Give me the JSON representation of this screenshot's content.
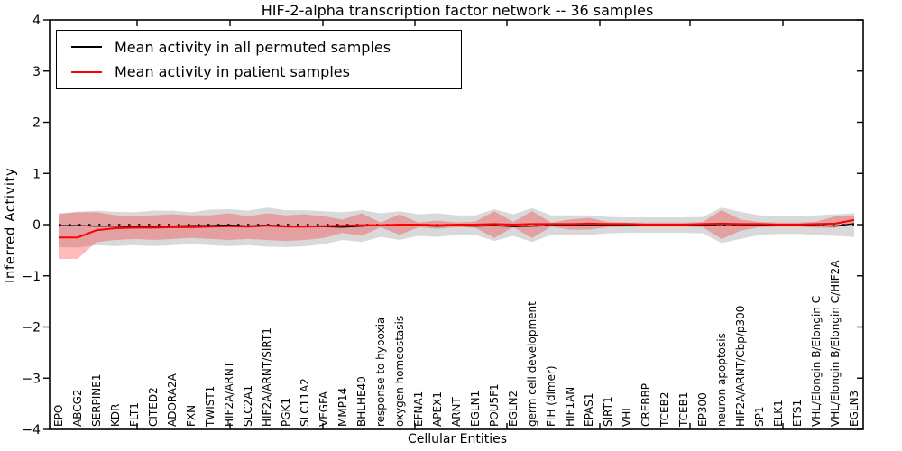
{
  "title": "HIF-2-alpha transcription factor network -- 36 samples",
  "axes": {
    "xlabel": "Cellular Entities",
    "ylabel": "Inferred Activity",
    "ytick_labels": [
      "4",
      "3",
      "2",
      "1",
      "0",
      "−1",
      "−2",
      "−3",
      "−4"
    ]
  },
  "legend": {
    "entries": [
      {
        "label": "Mean activity in all permuted samples",
        "color": "#000000"
      },
      {
        "label": "Mean activity in patient samples",
        "color": "#ff0000"
      }
    ]
  },
  "colors": {
    "permuted_line": "#000000",
    "patient_line": "#ff0000",
    "permuted_band": "rgba(120,120,120,0.28)",
    "patient_band": "rgba(255,30,30,0.30)",
    "frame": "#000000"
  },
  "chart_data": {
    "type": "line",
    "title": "HIF-2-alpha transcription factor network -- 36 samples",
    "xlabel": "Cellular Entities",
    "ylabel": "Inferred Activity",
    "ylim": [
      -4,
      4
    ],
    "yticks": [
      4,
      3,
      2,
      1,
      0,
      -1,
      -2,
      -3,
      -4
    ],
    "grid": false,
    "legend_position": "upper left",
    "categories": [
      "EPO",
      "ABCG2",
      "SERPINE1",
      "KDR",
      "FLT1",
      "CITED2",
      "ADORA2A",
      "FXN",
      "TWIST1",
      "HIF2A/ARNT",
      "SLC2A1",
      "HIF2A/ARNT/SIRT1",
      "PGK1",
      "SLC11A2",
      "VEGFA",
      "MMP14",
      "BHLHE40",
      "response to hypoxia",
      "oxygen homeostasis",
      "EFNA1",
      "APEX1",
      "ARNT",
      "EGLN1",
      "POU5F1",
      "EGLN2",
      "germ cell development",
      "FIH (dimer)",
      "HIF1AN",
      "EPAS1",
      "SIRT1",
      "VHL",
      "CREBBP",
      "TCEB2",
      "TCEB1",
      "EP300",
      "neuron apoptosis",
      "HIF2A/ARNT/Cbp/p300",
      "SP1",
      "ELK1",
      "ETS1",
      "VHL/Elongin B/Elongin C",
      "VHL/Elongin B/Elongin C/HIF2A",
      "EGLN3"
    ],
    "series": [
      {
        "name": "Mean activity in all permuted samples",
        "color": "#000000",
        "values": [
          -0.02,
          -0.02,
          -0.03,
          -0.03,
          -0.04,
          -0.04,
          -0.03,
          -0.02,
          -0.02,
          -0.01,
          -0.03,
          -0.01,
          -0.03,
          -0.03,
          -0.04,
          -0.05,
          -0.03,
          -0.01,
          -0.01,
          -0.02,
          -0.03,
          -0.02,
          -0.03,
          -0.02,
          -0.04,
          -0.03,
          -0.02,
          -0.01,
          -0.01,
          -0.01,
          -0.01,
          -0.01,
          -0.01,
          -0.01,
          -0.01,
          -0.02,
          -0.02,
          -0.01,
          -0.02,
          -0.02,
          -0.02,
          -0.03,
          0.02
        ]
      },
      {
        "name": "Mean activity in patient samples",
        "color": "#ff0000",
        "values": [
          -0.25,
          -0.25,
          -0.11,
          -0.07,
          -0.06,
          -0.06,
          -0.05,
          -0.05,
          -0.04,
          -0.03,
          -0.04,
          -0.02,
          -0.04,
          -0.04,
          -0.03,
          -0.02,
          -0.01,
          -0.01,
          0.0,
          0.0,
          -0.01,
          0.0,
          0.0,
          0.01,
          0.0,
          0.01,
          0.01,
          0.01,
          0.02,
          0.01,
          0.01,
          0.0,
          0.0,
          0.0,
          0.01,
          0.02,
          0.01,
          0.01,
          0.0,
          0.0,
          0.01,
          0.02,
          0.09
        ]
      }
    ],
    "bands": [
      {
        "name": "permuted-range",
        "upper": [
          0.22,
          0.25,
          0.27,
          0.25,
          0.24,
          0.27,
          0.27,
          0.24,
          0.29,
          0.3,
          0.27,
          0.33,
          0.28,
          0.28,
          0.26,
          0.24,
          0.28,
          0.22,
          0.26,
          0.2,
          0.22,
          0.18,
          0.18,
          0.3,
          0.2,
          0.32,
          0.18,
          0.18,
          0.18,
          0.15,
          0.14,
          0.14,
          0.14,
          0.14,
          0.15,
          0.33,
          0.25,
          0.18,
          0.16,
          0.16,
          0.18,
          0.2,
          0.22
        ],
        "lower": [
          -0.44,
          -0.45,
          -0.4,
          -0.42,
          -0.4,
          -0.42,
          -0.4,
          -0.38,
          -0.4,
          -0.42,
          -0.4,
          -0.43,
          -0.44,
          -0.42,
          -0.38,
          -0.3,
          -0.34,
          -0.24,
          -0.3,
          -0.22,
          -0.24,
          -0.2,
          -0.2,
          -0.32,
          -0.22,
          -0.34,
          -0.2,
          -0.2,
          -0.2,
          -0.17,
          -0.16,
          -0.16,
          -0.16,
          -0.16,
          -0.17,
          -0.36,
          -0.28,
          -0.2,
          -0.18,
          -0.18,
          -0.2,
          -0.22,
          -0.24
        ]
      },
      {
        "name": "patient-range",
        "upper": [
          0.2,
          0.24,
          0.24,
          0.18,
          0.16,
          0.18,
          0.2,
          0.18,
          0.18,
          0.22,
          0.16,
          0.22,
          0.18,
          0.2,
          0.16,
          0.1,
          0.22,
          0.04,
          0.2,
          0.04,
          0.08,
          0.04,
          0.06,
          0.26,
          0.05,
          0.26,
          0.04,
          0.1,
          0.13,
          0.05,
          0.04,
          0.04,
          0.04,
          0.04,
          0.05,
          0.28,
          0.1,
          0.05,
          0.04,
          0.04,
          0.06,
          0.16,
          0.18
        ],
        "lower": [
          -0.67,
          -0.67,
          -0.34,
          -0.3,
          -0.28,
          -0.3,
          -0.28,
          -0.26,
          -0.28,
          -0.3,
          -0.28,
          -0.3,
          -0.32,
          -0.3,
          -0.26,
          -0.16,
          -0.22,
          -0.05,
          -0.2,
          -0.05,
          -0.08,
          -0.05,
          -0.06,
          -0.26,
          -0.05,
          -0.26,
          -0.04,
          -0.1,
          -0.1,
          -0.05,
          -0.04,
          -0.04,
          -0.04,
          -0.04,
          -0.05,
          -0.28,
          -0.12,
          -0.05,
          -0.04,
          -0.04,
          -0.06,
          -0.06,
          0.01
        ]
      }
    ],
    "zero_line": {
      "style": "dotted",
      "color": "#000000",
      "y": 0
    }
  }
}
